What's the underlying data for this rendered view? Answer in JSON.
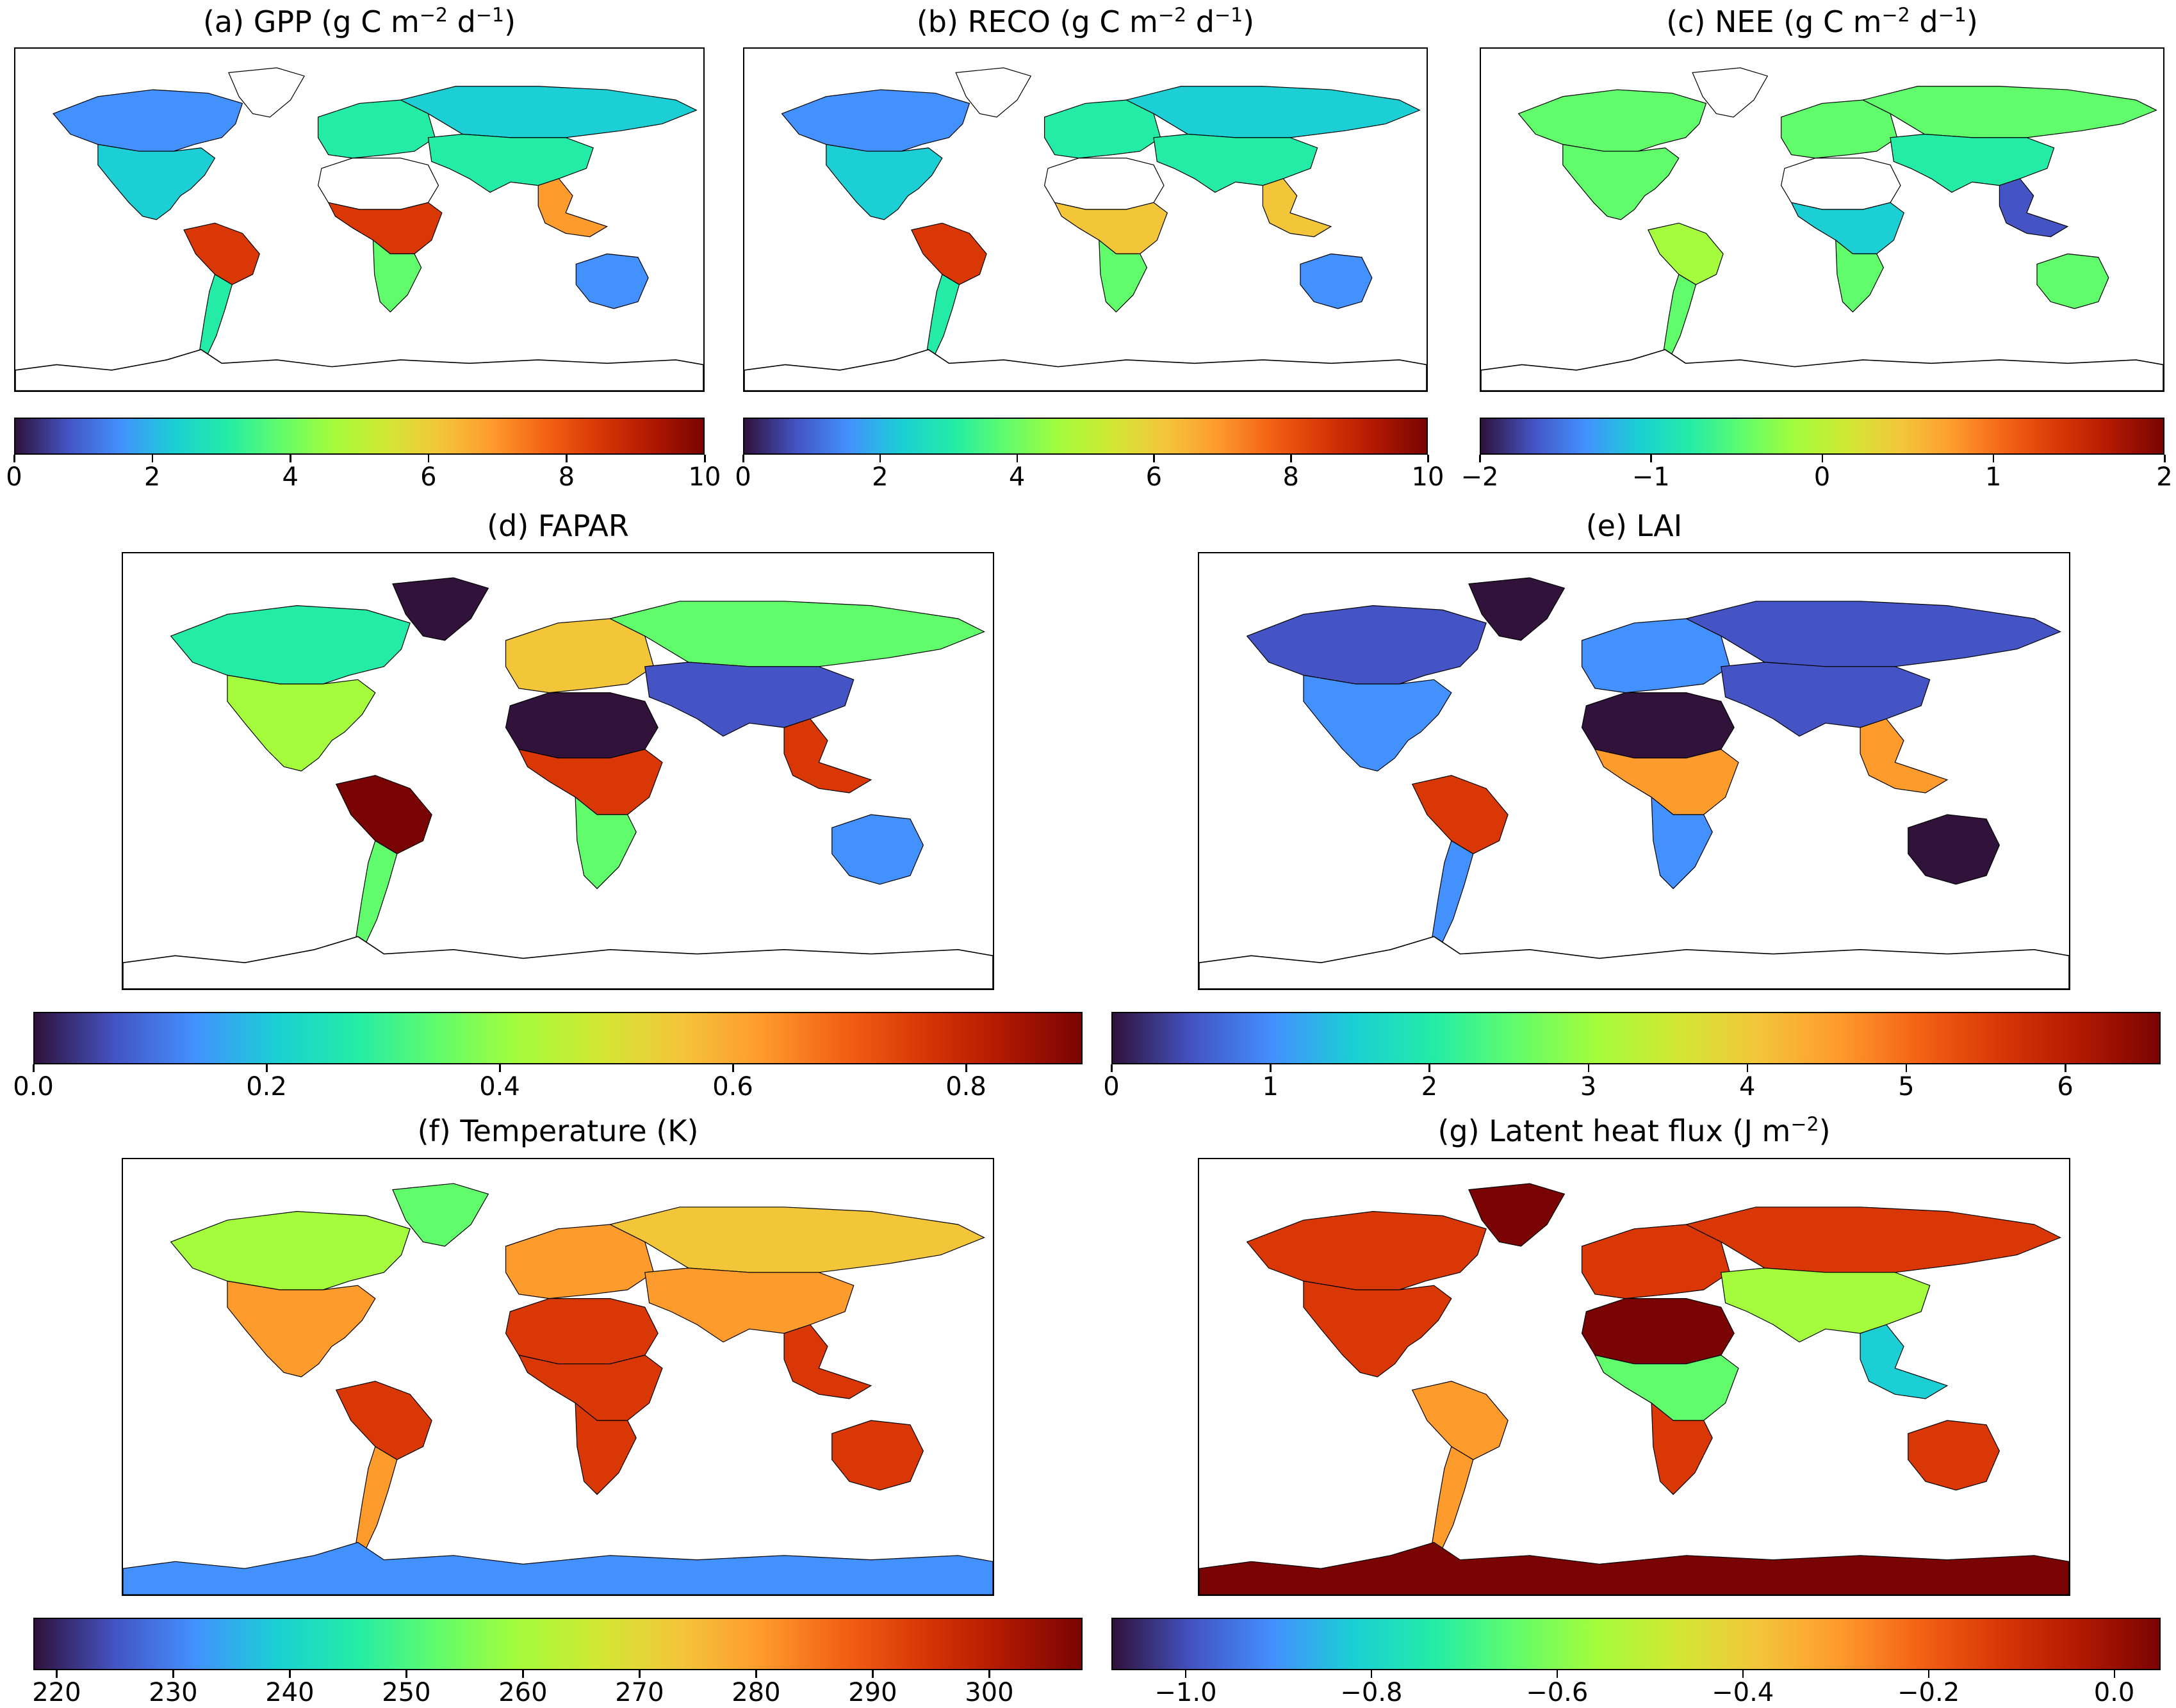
{
  "figure": {
    "colormap": [
      "#30123b",
      "#4454c4",
      "#4391fe",
      "#1bcfd4",
      "#24eca6",
      "#61fc6c",
      "#a4fc3c",
      "#d1e834",
      "#f3c63a",
      "#fe9b2d",
      "#f36315",
      "#d93806",
      "#b11901",
      "#7a0403"
    ],
    "land_colors": [
      "#30123b",
      "#4454c4",
      "#4391fe",
      "#1bcfd4",
      "#24eca6",
      "#61fc6c",
      "#a4fc3c",
      "#f3c63a",
      "#fe9b2d",
      "#d93806",
      "#7a0403"
    ],
    "coast_color": "#000000"
  },
  "panels": [
    {
      "id": "gpp",
      "title_main": "(a) GPP (g C m",
      "title_sup1": "−2",
      "title_mid": " d",
      "title_sup2": "−1",
      "title_end": ")",
      "colorbar": {
        "min": 0,
        "max": 10,
        "ticks": [
          "0",
          "2",
          "4",
          "6",
          "8",
          "10"
        ],
        "tick_values": [
          0,
          2,
          4,
          6,
          8,
          10
        ]
      },
      "land_levels": {
        "na_north": 2,
        "na_south": 3,
        "greenland": -1,
        "south_america": 9,
        "sa_south": 4,
        "africa_north": -1,
        "africa_central": 9,
        "africa_south": 5,
        "europe": 4,
        "asia_north": 3,
        "asia_south": 4,
        "se_asia": 8,
        "australia": 2,
        "antarctica": -1
      },
      "chart_data": {
        "type": "heatmap",
        "title": "(a) GPP (g C m−2 d−1)",
        "vmin": 0,
        "vmax": 10,
        "colorbar_ticks": [
          0,
          2,
          4,
          6,
          8,
          10
        ],
        "description_values": {
          "amazon": 9,
          "central_africa": 8,
          "boreal": 2,
          "sahara": null
        }
      }
    },
    {
      "id": "reco",
      "title_main": "(b) RECO (g C m",
      "title_sup1": "−2",
      "title_mid": " d",
      "title_sup2": "−1",
      "title_end": ")",
      "colorbar": {
        "min": 0,
        "max": 10,
        "ticks": [
          "0",
          "2",
          "4",
          "6",
          "8",
          "10"
        ],
        "tick_values": [
          0,
          2,
          4,
          6,
          8,
          10
        ]
      },
      "land_levels": {
        "na_north": 2,
        "na_south": 3,
        "greenland": -1,
        "south_america": 9,
        "sa_south": 4,
        "africa_north": -1,
        "africa_central": 7,
        "africa_south": 5,
        "europe": 4,
        "asia_north": 3,
        "asia_south": 4,
        "se_asia": 7,
        "australia": 2,
        "antarctica": -1
      },
      "chart_data": {
        "type": "heatmap",
        "title": "(b) RECO (g C m−2 d−1)",
        "vmin": 0,
        "vmax": 10,
        "colorbar_ticks": [
          0,
          2,
          4,
          6,
          8,
          10
        ]
      }
    },
    {
      "id": "nee",
      "title_main": "(c) NEE (g C m",
      "title_sup1": "−2",
      "title_mid": " d",
      "title_sup2": "−1",
      "title_end": ")",
      "colorbar": {
        "min": -2,
        "max": 2,
        "ticks": [
          "−2",
          "−1",
          "0",
          "1",
          "2"
        ],
        "tick_values": [
          -2,
          -1,
          0,
          1,
          2
        ]
      },
      "land_levels": {
        "na_north": 5,
        "na_south": 5,
        "greenland": -1,
        "south_america": 6,
        "sa_south": 5,
        "africa_north": -1,
        "africa_central": 3,
        "africa_south": 5,
        "europe": 5,
        "asia_north": 5,
        "asia_south": 4,
        "se_asia": 1,
        "australia": 5,
        "antarctica": -1
      },
      "chart_data": {
        "type": "heatmap",
        "title": "(c) NEE (g C m−2 d−1)",
        "vmin": -2,
        "vmax": 2,
        "colorbar_ticks": [
          -2,
          -1,
          0,
          1,
          2
        ]
      }
    },
    {
      "id": "fapar",
      "title_main": "(d) FAPAR",
      "title_sup1": "",
      "title_mid": "",
      "title_sup2": "",
      "title_end": "",
      "colorbar": {
        "min": 0,
        "max": 0.9,
        "ticks": [
          "0.0",
          "0.2",
          "0.4",
          "0.6",
          "0.8"
        ],
        "tick_values": [
          0,
          0.2,
          0.4,
          0.6,
          0.8
        ]
      },
      "land_levels": {
        "na_north": 4,
        "na_south": 6,
        "greenland": 0,
        "south_america": 10,
        "sa_south": 5,
        "africa_north": 0,
        "africa_central": 9,
        "africa_south": 5,
        "europe": 7,
        "asia_north": 5,
        "asia_south": 1,
        "se_asia": 9,
        "australia": 2,
        "antarctica": -1
      },
      "chart_data": {
        "type": "heatmap",
        "title": "(d) FAPAR",
        "vmin": 0.0,
        "vmax": 0.9,
        "colorbar_ticks": [
          0.0,
          0.2,
          0.4,
          0.6,
          0.8
        ]
      }
    },
    {
      "id": "lai",
      "title_main": "(e) LAI",
      "title_sup1": "",
      "title_mid": "",
      "title_sup2": "",
      "title_end": "",
      "colorbar": {
        "min": 0,
        "max": 6.6,
        "ticks": [
          "0",
          "1",
          "2",
          "3",
          "4",
          "5",
          "6"
        ],
        "tick_values": [
          0,
          1,
          2,
          3,
          4,
          5,
          6
        ]
      },
      "land_levels": {
        "na_north": 1,
        "na_south": 2,
        "greenland": 0,
        "south_america": 9,
        "sa_south": 2,
        "africa_north": 0,
        "africa_central": 8,
        "africa_south": 2,
        "europe": 2,
        "asia_north": 1,
        "asia_south": 1,
        "se_asia": 8,
        "australia": 0,
        "antarctica": -1
      },
      "chart_data": {
        "type": "heatmap",
        "title": "(e) LAI",
        "vmin": 0,
        "vmax": 6.6,
        "colorbar_ticks": [
          0,
          1,
          2,
          3,
          4,
          5,
          6
        ]
      }
    },
    {
      "id": "temp",
      "title_main": "(f) Temperature (K)",
      "title_sup1": "",
      "title_mid": "",
      "title_sup2": "",
      "title_end": "",
      "colorbar": {
        "min": 218,
        "max": 308,
        "ticks": [
          "220",
          "230",
          "240",
          "250",
          "260",
          "270",
          "280",
          "290",
          "300"
        ],
        "tick_values": [
          220,
          230,
          240,
          250,
          260,
          270,
          280,
          290,
          300
        ]
      },
      "land_levels": {
        "na_north": 6,
        "na_south": 8,
        "greenland": 5,
        "south_america": 9,
        "sa_south": 8,
        "africa_north": 9,
        "africa_central": 9,
        "africa_south": 9,
        "europe": 8,
        "asia_north": 7,
        "asia_south": 8,
        "se_asia": 9,
        "australia": 9,
        "antarctica": 2
      },
      "chart_data": {
        "type": "heatmap",
        "title": "(f) Temperature (K)",
        "vmin": 218,
        "vmax": 308,
        "colorbar_ticks": [
          220,
          230,
          240,
          250,
          260,
          270,
          280,
          290,
          300
        ]
      }
    },
    {
      "id": "lhf",
      "title_main": "(g) Latent heat flux (J m",
      "title_sup1": "−2",
      "title_mid": "",
      "title_sup2": "",
      "title_end": ")",
      "colorbar": {
        "min": -1.08,
        "max": 0.05,
        "ticks": [
          "−1.0",
          "−0.8",
          "−0.6",
          "−0.4",
          "−0.2",
          "0.0"
        ],
        "tick_values": [
          -1.0,
          -0.8,
          -0.6,
          -0.4,
          -0.2,
          0.0
        ]
      },
      "land_levels": {
        "na_north": 9,
        "na_south": 9,
        "greenland": 10,
        "south_america": 8,
        "sa_south": 8,
        "africa_north": 10,
        "africa_central": 5,
        "africa_south": 9,
        "europe": 9,
        "asia_north": 9,
        "asia_south": 6,
        "se_asia": 3,
        "australia": 9,
        "antarctica": 10
      },
      "chart_data": {
        "type": "heatmap",
        "title": "(g) Latent heat flux (J m−2)",
        "vmin": -1.08,
        "vmax": 0.05,
        "colorbar_ticks": [
          -1.0,
          -0.8,
          -0.6,
          -0.4,
          -0.2,
          0.0
        ]
      }
    }
  ]
}
